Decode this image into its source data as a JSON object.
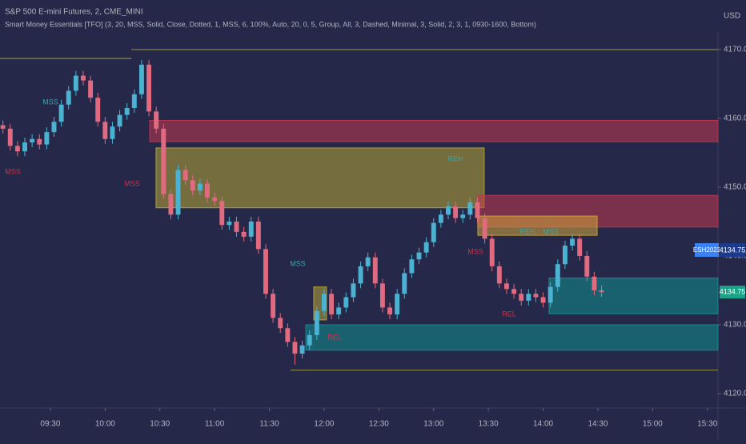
{
  "chart_data": {
    "type": "candlestick",
    "title": "S&P 500 E-mini Futures, 2, CME_MINI",
    "subtitle": "Smart Money Essentials [TFO] (3, 20, MSS, Solid, Close, Dotted, 1, MSS, 6, 100%, Auto, 20, 0, 5, Group, All, 3, Dashed, Minimal, 3, Solid, 2, 3, 1, 0930-1600, Bottom)",
    "y_axis_label": "USD",
    "up_color": "#4bb3d1",
    "down_color": "#e06a80",
    "x": [
      4,
      8,
      12,
      16,
      20,
      24,
      28,
      32,
      36,
      40,
      44,
      48,
      52,
      56,
      60,
      64,
      68,
      72,
      76,
      80,
      84,
      88,
      92,
      96,
      100,
      104,
      108,
      112,
      116,
      120,
      124,
      128,
      132,
      136,
      140,
      144,
      148,
      152,
      156,
      160,
      164,
      168,
      172,
      176,
      180,
      184,
      188,
      192,
      196,
      200,
      204,
      208,
      212,
      216,
      220,
      224,
      228,
      232,
      236,
      240,
      244,
      248,
      252,
      256,
      260,
      264,
      268,
      272,
      276,
      280,
      284,
      288,
      292,
      296,
      300,
      304,
      308,
      312,
      316,
      320,
      324,
      328,
      332
    ],
    "open": [
      4159.0,
      4158.5,
      4156.0,
      4155.2,
      4156.5,
      4157.0,
      4156.2,
      4158.0,
      4159.5,
      4162.0,
      4164.0,
      4166.2,
      4165.5,
      4163.0,
      4159.5,
      4157.0,
      4158.8,
      4160.5,
      4161.5,
      4163.5,
      4167.8,
      4161.0,
      4158.5,
      4149.0,
      4146.0,
      4152.5,
      4151.0,
      4149.5,
      4150.5,
      4148.5,
      4148.0,
      4144.5,
      4145.0,
      4143.5,
      4142.8,
      4145.0,
      4141.0,
      4134.5,
      4131.0,
      4129.5,
      4127.5,
      4125.8,
      4127.0,
      4128.5,
      4132.0,
      4134.5,
      4131.5,
      4132.5,
      4134.0,
      4136.0,
      4138.5,
      4139.8,
      4136.0,
      4132.5,
      4131.5,
      4134.5,
      4137.5,
      4139.5,
      4140.5,
      4142.0,
      4144.8,
      4146.0,
      4147.2,
      4145.5,
      4146.0,
      4147.8,
      4145.5,
      4142.5,
      4138.5,
      4136.0,
      4135.2,
      4134.5,
      4133.5,
      4134.5,
      4134.0,
      4133.2,
      4135.5,
      4138.8,
      4141.5,
      4142.5,
      4140.0,
      4137.0,
      4135.0
    ],
    "high": [
      4159.7,
      4159.2,
      4156.7,
      4157.2,
      4157.7,
      4157.7,
      4158.7,
      4160.2,
      4162.7,
      4164.7,
      4166.9,
      4166.9,
      4166.2,
      4163.7,
      4160.2,
      4159.5,
      4161.2,
      4162.2,
      4164.2,
      4168.5,
      4168.5,
      4161.7,
      4159.2,
      4149.7,
      4153.2,
      4153.2,
      4151.7,
      4151.2,
      4151.2,
      4149.2,
      4148.7,
      4145.7,
      4145.7,
      4144.2,
      4145.7,
      4145.7,
      4141.7,
      4135.2,
      4131.7,
      4130.2,
      4128.2,
      4127.7,
      4129.2,
      4132.7,
      4135.2,
      4135.2,
      4133.2,
      4134.7,
      4136.7,
      4139.2,
      4140.5,
      4140.5,
      4136.7,
      4133.2,
      4135.2,
      4138.2,
      4140.2,
      4141.2,
      4142.7,
      4145.5,
      4146.7,
      4147.9,
      4147.9,
      4146.7,
      4148.5,
      4148.5,
      4146.2,
      4143.2,
      4139.2,
      4136.7,
      4135.9,
      4135.2,
      4135.2,
      4135.2,
      4134.7,
      4136.2,
      4139.5,
      4142.2,
      4143.2,
      4143.2,
      4140.7,
      4137.7,
      4135.7
    ],
    "low": [
      4157.8,
      4155.3,
      4154.5,
      4154.5,
      4155.8,
      4155.5,
      4155.5,
      4157.3,
      4158.8,
      4161.3,
      4163.3,
      4164.8,
      4162.3,
      4158.8,
      4156.3,
      4156.3,
      4158.1,
      4159.8,
      4160.8,
      4162.8,
      4160.3,
      4157.8,
      4148.3,
      4145.3,
      4145.3,
      4150.3,
      4148.8,
      4148.8,
      4147.8,
      4147.3,
      4143.8,
      4143.8,
      4142.8,
      4142.1,
      4142.1,
      4140.3,
      4133.8,
      4130.3,
      4128.8,
      4126.8,
      4124.2,
      4125.1,
      4126.3,
      4127.8,
      4131.3,
      4130.8,
      4130.8,
      4131.8,
      4133.3,
      4135.3,
      4137.8,
      4135.3,
      4131.8,
      4130.8,
      4130.8,
      4133.8,
      4136.8,
      4138.8,
      4139.8,
      4141.3,
      4144.1,
      4145.3,
      4144.8,
      4144.8,
      4145.3,
      4144.8,
      4141.8,
      4137.8,
      4135.3,
      4134.5,
      4133.8,
      4132.8,
      4132.8,
      4133.3,
      4132.5,
      4132.5,
      4134.8,
      4138.1,
      4140.8,
      4139.3,
      4136.3,
      4134.3,
      4134.05
    ],
    "close": [
      4158.5,
      4156.0,
      4155.2,
      4156.5,
      4157.0,
      4156.2,
      4158.0,
      4159.5,
      4162.0,
      4164.0,
      4166.2,
      4165.5,
      4163.0,
      4159.5,
      4157.0,
      4158.8,
      4160.5,
      4161.5,
      4163.5,
      4167.8,
      4161.0,
      4158.5,
      4149.0,
      4146.0,
      4152.5,
      4151.0,
      4149.5,
      4150.5,
      4148.5,
      4148.0,
      4144.5,
      4145.0,
      4143.5,
      4142.8,
      4145.0,
      4141.0,
      4134.5,
      4131.0,
      4129.5,
      4127.5,
      4125.8,
      4127.0,
      4128.5,
      4132.0,
      4134.5,
      4131.5,
      4132.5,
      4134.0,
      4136.0,
      4138.5,
      4139.8,
      4136.0,
      4132.5,
      4131.5,
      4134.5,
      4137.5,
      4139.5,
      4140.5,
      4142.0,
      4144.8,
      4146.0,
      4147.2,
      4145.5,
      4146.0,
      4147.8,
      4145.5,
      4142.5,
      4138.5,
      4136.0,
      4135.2,
      4134.5,
      4133.5,
      4134.5,
      4134.0,
      4133.2,
      4135.5,
      4138.8,
      4141.5,
      4142.5,
      4140.0,
      4137.0,
      4135.0,
      4134.75
    ],
    "xlim": [
      2.4,
      395.8
    ],
    "xticks": [
      {
        "value": 30,
        "label": "09:30"
      },
      {
        "value": 60,
        "label": "10:00"
      },
      {
        "value": 90,
        "label": "10:30"
      },
      {
        "value": 120,
        "label": "11:00"
      },
      {
        "value": 150,
        "label": "11:30"
      },
      {
        "value": 180,
        "label": "12:00"
      },
      {
        "value": 210,
        "label": "12:30"
      },
      {
        "value": 240,
        "label": "13:00"
      },
      {
        "value": 270,
        "label": "13:30"
      },
      {
        "value": 300,
        "label": "14:00"
      },
      {
        "value": 330,
        "label": "14:30"
      },
      {
        "value": 360,
        "label": "15:00"
      },
      {
        "value": 390,
        "label": "15:30"
      }
    ],
    "ylim": [
      4117.9,
      4177.2
    ],
    "yticks": [
      {
        "value": 4120,
        "label": "4120.00"
      },
      {
        "value": 4130,
        "label": "4130.00"
      },
      {
        "value": 4140,
        "label": "4140.00"
      },
      {
        "value": 4150,
        "label": "4150.00"
      },
      {
        "value": 4160,
        "label": "4160.00"
      },
      {
        "value": 4170,
        "label": "4170.00"
      }
    ],
    "zones": [
      {
        "from": 84.4,
        "to": 395.8,
        "top": 4159.7,
        "bottom": 4156.6,
        "color": "#c2364f"
      },
      {
        "from": 87.9,
        "to": 267.7,
        "top": 4155.7,
        "bottom": 4147.0,
        "color": "#b9a636"
      },
      {
        "from": 264.2,
        "to": 395.8,
        "top": 4148.8,
        "bottom": 4144.2,
        "color": "#c2364f"
      },
      {
        "from": 264.2,
        "to": 329.6,
        "top": 4145.8,
        "bottom": 4143.0,
        "color": "#d2a63a"
      },
      {
        "from": 303.2,
        "to": 395.8,
        "top": 4136.8,
        "bottom": 4131.6,
        "color": "#138f8f"
      },
      {
        "from": 169.9,
        "to": 395.8,
        "top": 4130.0,
        "bottom": 4126.3,
        "color": "#138f8f"
      },
      {
        "from": 174.3,
        "to": 181.3,
        "top": 4135.5,
        "bottom": 4130.7,
        "color": "#b9a636"
      }
    ],
    "levels": [
      {
        "from": 2.4,
        "to": 74.4,
        "price": 4168.7,
        "color": "#8c8a3c"
      },
      {
        "from": 74.4,
        "to": 395.8,
        "price": 4170.0,
        "color": "#8c8a3c"
      },
      {
        "from": 161.6,
        "to": 395.8,
        "price": 4123.4,
        "color": "#8c8a3c"
      }
    ],
    "annotations": [
      {
        "text": "MSS",
        "color": "#3aa6a6"
      },
      {
        "text": "MSS",
        "color": "#c2364f"
      },
      {
        "text": "MSS",
        "color": "#c2364f"
      },
      {
        "text": "MSS",
        "color": "#3aa6a6"
      },
      {
        "text": "REH",
        "color": "#3aa6a6"
      },
      {
        "text": "REH",
        "color": "#3aa6a6"
      },
      {
        "text": "MSS",
        "color": "#3aa6a6"
      },
      {
        "text": "MSS",
        "color": "#c2364f"
      },
      {
        "text": "REL",
        "color": "#c2364f"
      },
      {
        "text": "REL",
        "color": "#c2364f"
      }
    ],
    "symbol_label": "ESH2023",
    "last_price": 4134.75
  }
}
